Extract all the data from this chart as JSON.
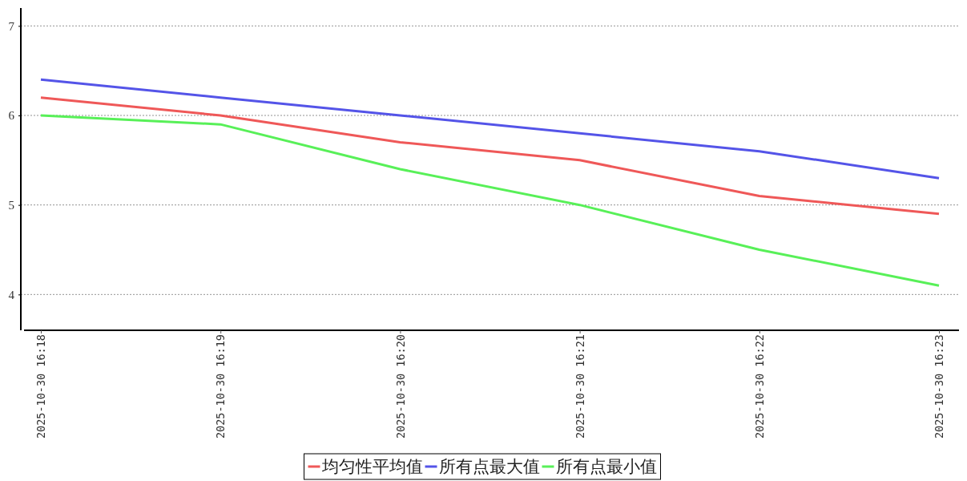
{
  "chart_data": {
    "type": "line",
    "categories": [
      "2025-10-30 16:18",
      "2025-10-30 16:19",
      "2025-10-30 16:20",
      "2025-10-30 16:21",
      "2025-10-30 16:22",
      "2025-10-30 16:23"
    ],
    "series": [
      {
        "name": "均匀性平均值",
        "color": "#ef5858",
        "values": [
          6.2,
          6.0,
          5.7,
          5.5,
          5.1,
          4.9
        ]
      },
      {
        "name": "所有点最大值",
        "color": "#5454e8",
        "values": [
          6.4,
          6.2,
          6.0,
          5.8,
          5.6,
          5.3
        ]
      },
      {
        "name": "所有点最小值",
        "color": "#58f058",
        "values": [
          6.0,
          5.9,
          5.4,
          5.0,
          4.5,
          4.1
        ]
      }
    ],
    "ylim": [
      3.6,
      7.2
    ],
    "yticks": [
      4,
      5,
      6,
      7
    ],
    "grid": "y",
    "legend": "bottom"
  }
}
